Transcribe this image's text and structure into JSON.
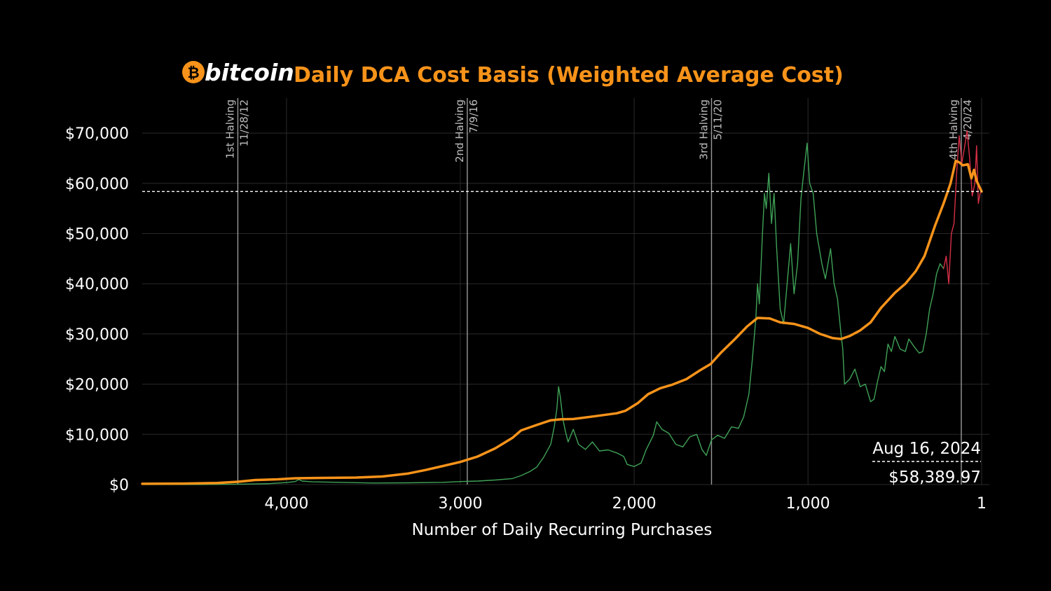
{
  "brand": {
    "name": "bitcoin",
    "symbol": "₿",
    "icon": "bitcoin-logo-icon"
  },
  "colors": {
    "background": "#000000",
    "accent": "#f7931a",
    "price_green": "#3fa257",
    "price_red": "#d62f45",
    "grid": "#2a2a2a",
    "halving_line": "#9a9a9a"
  },
  "chart_data": {
    "type": "line",
    "title": "Daily DCA Cost Basis (Weighted Average Cost)",
    "xlabel": "Number of Daily Recurring Purchases",
    "ylabel": "",
    "x_reversed": true,
    "xlim": [
      4830,
      1
    ],
    "ylim": [
      0,
      77000
    ],
    "x_ticks": [
      {
        "value": 4000,
        "label": "4,000"
      },
      {
        "value": 3000,
        "label": "3,000"
      },
      {
        "value": 2000,
        "label": "2,000"
      },
      {
        "value": 1000,
        "label": "1,000"
      },
      {
        "value": 1,
        "label": "1"
      }
    ],
    "y_ticks": [
      {
        "value": 0,
        "label": "$0"
      },
      {
        "value": 10000,
        "label": "$10,000"
      },
      {
        "value": 20000,
        "label": "$20,000"
      },
      {
        "value": 30000,
        "label": "$30,000"
      },
      {
        "value": 40000,
        "label": "$40,000"
      },
      {
        "value": 50000,
        "label": "$50,000"
      },
      {
        "value": 60000,
        "label": "$60,000"
      },
      {
        "value": 70000,
        "label": "$70,000"
      }
    ],
    "grid": true,
    "halvings": [
      {
        "x": 4280,
        "name": "1st Halving",
        "date": "11/28/12"
      },
      {
        "x": 2960,
        "name": "2nd Halving",
        "date": "7/9/16"
      },
      {
        "x": 1555,
        "name": "3rd Halving",
        "date": "5/11/20"
      },
      {
        "x": 118,
        "name": "4th Halving",
        "date": "4/20/24"
      }
    ],
    "reference_line": {
      "y": 58389.97,
      "style": "dashed"
    },
    "annotation": {
      "date": "Aug 16, 2024",
      "value": "$58,389.97"
    },
    "series": [
      {
        "role": "cost_basis",
        "color": "#f7931a",
        "points": [
          [
            4830,
            150
          ],
          [
            4600,
            200
          ],
          [
            4400,
            320
          ],
          [
            4280,
            560
          ],
          [
            4180,
            900
          ],
          [
            4050,
            1050
          ],
          [
            3950,
            1250
          ],
          [
            3800,
            1320
          ],
          [
            3600,
            1400
          ],
          [
            3450,
            1600
          ],
          [
            3300,
            2200
          ],
          [
            3200,
            2900
          ],
          [
            3100,
            3700
          ],
          [
            3000,
            4500
          ],
          [
            2900,
            5600
          ],
          [
            2800,
            7200
          ],
          [
            2700,
            9300
          ],
          [
            2650,
            10800
          ],
          [
            2550,
            12000
          ],
          [
            2480,
            12800
          ],
          [
            2420,
            13000
          ],
          [
            2350,
            13050
          ],
          [
            2250,
            13500
          ],
          [
            2100,
            14200
          ],
          [
            2050,
            14700
          ],
          [
            1980,
            16200
          ],
          [
            1920,
            18000
          ],
          [
            1850,
            19200
          ],
          [
            1780,
            19900
          ],
          [
            1700,
            21000
          ],
          [
            1620,
            22800
          ],
          [
            1560,
            24000
          ],
          [
            1500,
            26300
          ],
          [
            1420,
            29000
          ],
          [
            1350,
            31500
          ],
          [
            1290,
            33200
          ],
          [
            1220,
            33100
          ],
          [
            1160,
            32300
          ],
          [
            1080,
            32000
          ],
          [
            1000,
            31200
          ],
          [
            930,
            30000
          ],
          [
            860,
            29200
          ],
          [
            810,
            29000
          ],
          [
            760,
            29600
          ],
          [
            700,
            30700
          ],
          [
            640,
            32300
          ],
          [
            580,
            35200
          ],
          [
            500,
            38200
          ],
          [
            440,
            40000
          ],
          [
            380,
            42500
          ],
          [
            330,
            45500
          ],
          [
            270,
            51500
          ],
          [
            220,
            56000
          ],
          [
            180,
            60000
          ],
          [
            150,
            64500
          ],
          [
            130,
            64200
          ],
          [
            110,
            63600
          ],
          [
            80,
            63800
          ],
          [
            60,
            61000
          ],
          [
            45,
            62700
          ],
          [
            30,
            60500
          ],
          [
            1,
            58390
          ]
        ]
      },
      {
        "role": "price_history",
        "color": "#3fa257",
        "points": [
          [
            4830,
            10
          ],
          [
            4500,
            20
          ],
          [
            4300,
            60
          ],
          [
            4200,
            110
          ],
          [
            4100,
            180
          ],
          [
            4000,
            400
          ],
          [
            3950,
            600
          ],
          [
            3930,
            1000
          ],
          [
            3910,
            700
          ],
          [
            3850,
            550
          ],
          [
            3700,
            450
          ],
          [
            3500,
            300
          ],
          [
            3300,
            350
          ],
          [
            3100,
            450
          ],
          [
            3000,
            600
          ],
          [
            2900,
            700
          ],
          [
            2800,
            900
          ],
          [
            2700,
            1200
          ],
          [
            2650,
            1800
          ],
          [
            2600,
            2600
          ],
          [
            2560,
            3500
          ],
          [
            2520,
            5500
          ],
          [
            2480,
            8000
          ],
          [
            2460,
            11500
          ],
          [
            2445,
            15000
          ],
          [
            2435,
            19500
          ],
          [
            2425,
            17500
          ],
          [
            2410,
            13000
          ],
          [
            2395,
            10500
          ],
          [
            2380,
            8500
          ],
          [
            2350,
            11000
          ],
          [
            2320,
            8000
          ],
          [
            2280,
            7000
          ],
          [
            2240,
            8500
          ],
          [
            2200,
            6700
          ],
          [
            2150,
            6900
          ],
          [
            2100,
            6300
          ],
          [
            2060,
            5600
          ],
          [
            2040,
            4000
          ],
          [
            2000,
            3600
          ],
          [
            1960,
            4300
          ],
          [
            1930,
            7000
          ],
          [
            1890,
            9800
          ],
          [
            1870,
            12500
          ],
          [
            1840,
            11000
          ],
          [
            1800,
            10200
          ],
          [
            1760,
            8000
          ],
          [
            1720,
            7500
          ],
          [
            1680,
            9500
          ],
          [
            1640,
            10000
          ],
          [
            1610,
            7000
          ],
          [
            1585,
            5800
          ],
          [
            1555,
            8900
          ],
          [
            1520,
            9800
          ],
          [
            1480,
            9200
          ],
          [
            1440,
            11500
          ],
          [
            1400,
            11200
          ],
          [
            1370,
            13500
          ],
          [
            1340,
            18000
          ],
          [
            1320,
            25000
          ],
          [
            1300,
            33000
          ],
          [
            1290,
            40000
          ],
          [
            1280,
            36000
          ],
          [
            1262,
            50000
          ],
          [
            1250,
            58000
          ],
          [
            1240,
            55000
          ],
          [
            1225,
            62000
          ],
          [
            1210,
            52000
          ],
          [
            1195,
            58000
          ],
          [
            1180,
            47000
          ],
          [
            1160,
            35000
          ],
          [
            1140,
            32000
          ],
          [
            1120,
            40000
          ],
          [
            1100,
            48000
          ],
          [
            1080,
            38000
          ],
          [
            1060,
            44000
          ],
          [
            1040,
            57000
          ],
          [
            1025,
            62000
          ],
          [
            1005,
            68000
          ],
          [
            990,
            60000
          ],
          [
            970,
            58000
          ],
          [
            950,
            50000
          ],
          [
            920,
            44000
          ],
          [
            900,
            41000
          ],
          [
            870,
            47000
          ],
          [
            850,
            40000
          ],
          [
            830,
            37000
          ],
          [
            810,
            30000
          ],
          [
            800,
            27000
          ],
          [
            790,
            20000
          ],
          [
            760,
            21000
          ],
          [
            730,
            23000
          ],
          [
            700,
            19500
          ],
          [
            670,
            20000
          ],
          [
            640,
            16500
          ],
          [
            620,
            17000
          ],
          [
            600,
            20500
          ],
          [
            580,
            23500
          ],
          [
            560,
            22500
          ],
          [
            540,
            28000
          ],
          [
            520,
            26500
          ],
          [
            500,
            29500
          ],
          [
            470,
            27000
          ],
          [
            440,
            26500
          ],
          [
            420,
            29000
          ],
          [
            390,
            27500
          ],
          [
            360,
            26200
          ],
          [
            340,
            26500
          ],
          [
            320,
            30000
          ],
          [
            300,
            35000
          ],
          [
            280,
            38000
          ],
          [
            260,
            42000
          ],
          [
            240,
            44000
          ],
          [
            220,
            43000
          ]
        ]
      },
      {
        "role": "price_recent",
        "color": "#d62f45",
        "points": [
          [
            220,
            43000
          ],
          [
            205,
            45500
          ],
          [
            190,
            40000
          ],
          [
            175,
            50000
          ],
          [
            160,
            52000
          ],
          [
            145,
            62000
          ],
          [
            130,
            69500
          ],
          [
            115,
            64000
          ],
          [
            100,
            67000
          ],
          [
            85,
            70500
          ],
          [
            70,
            65000
          ],
          [
            55,
            57500
          ],
          [
            40,
            60000
          ],
          [
            30,
            67500
          ],
          [
            20,
            56000
          ],
          [
            10,
            58000
          ],
          [
            1,
            58500
          ]
        ]
      }
    ]
  }
}
